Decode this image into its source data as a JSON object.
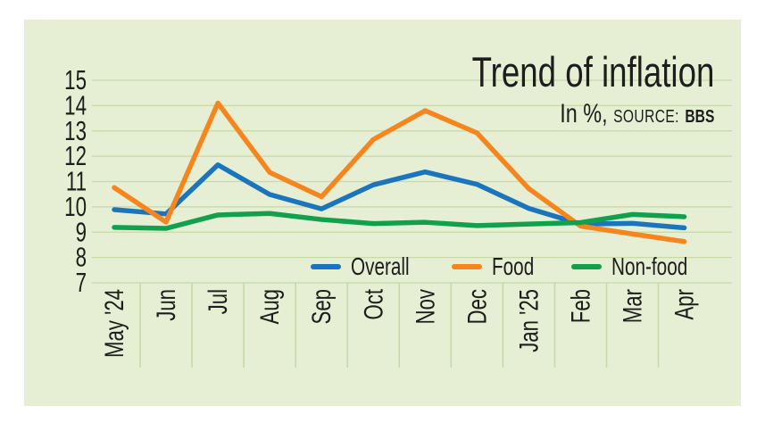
{
  "title": "Trend of inflation",
  "subtitle": {
    "unit": "In %,",
    "source_label": "SOURCE:",
    "source_value": "BBS"
  },
  "colors": {
    "page_background": "#ffffff",
    "panel_background": "#e6efd4",
    "gridline": "#c6d9a7",
    "text": "#1d1d1b"
  },
  "chart_data": {
    "type": "line",
    "title": "Trend of inflation",
    "unit": "%",
    "source": "BBS",
    "categories": [
      "May '24",
      "Jun",
      "Jul",
      "Aug",
      "Sep",
      "Oct",
      "Nov",
      "Dec",
      "Jan '25",
      "Feb",
      "Mar",
      "Apr"
    ],
    "series": [
      {
        "name": "Overall",
        "color": "#1a75bc",
        "values": [
          9.89,
          9.72,
          11.66,
          10.49,
          9.92,
          10.87,
          11.38,
          10.89,
          9.94,
          9.32,
          9.35,
          9.17
        ]
      },
      {
        "name": "Food",
        "color": "#f5851f",
        "values": [
          10.76,
          9.4,
          14.1,
          11.36,
          10.4,
          12.66,
          13.8,
          12.92,
          10.72,
          9.24,
          8.93,
          8.63
        ]
      },
      {
        "name": "Non-food",
        "color": "#11a14d",
        "values": [
          9.19,
          9.15,
          9.68,
          9.74,
          9.5,
          9.34,
          9.39,
          9.26,
          9.32,
          9.38,
          9.7,
          9.61
        ]
      }
    ],
    "ylim": [
      7,
      15
    ],
    "yticks": [
      15,
      14,
      13,
      12,
      11,
      10,
      9,
      8,
      7
    ],
    "grid": true,
    "legend_position": "bottom-inside",
    "x_labels_rotated": true
  }
}
